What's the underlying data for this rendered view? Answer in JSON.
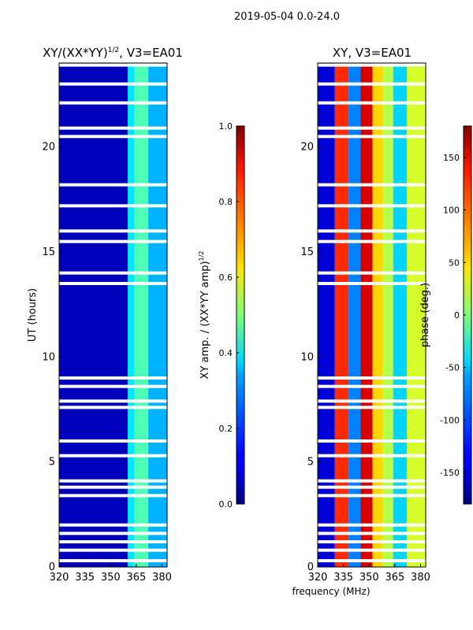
{
  "figure_title": "2019-05-04 0.0-24.0",
  "shared_xlabel": "frequency (MHz)",
  "chart_data": [
    {
      "type": "heatmap",
      "title_text": "XY/(XX*YY)",
      "title_exponent": "1/2",
      "title_suffix": ", V3=EA01",
      "xlabel": "",
      "ylabel": "UT (hours)",
      "xlim": [
        320,
        383
      ],
      "ylim": [
        0,
        24
      ],
      "xticks": [
        320,
        335,
        350,
        365,
        380
      ],
      "yticks": [
        0,
        5,
        10,
        15,
        20
      ],
      "colorbar": {
        "label": "XY amp. / (XX*YY amp)",
        "label_exponent": "1/2",
        "range": [
          0.0,
          1.0
        ],
        "ticks": [
          "0.0",
          "0.2",
          "0.4",
          "0.6",
          "0.8",
          "1.0"
        ],
        "colormap": "jet"
      },
      "bands": [
        {
          "fmin": 320,
          "fmax": 360,
          "value": 0.06
        },
        {
          "fmin": 360,
          "fmax": 364,
          "value": 0.35
        },
        {
          "fmin": 364,
          "fmax": 372,
          "value": 0.45
        },
        {
          "fmin": 372,
          "fmax": 383,
          "value": 0.3
        }
      ],
      "flagged_hours": [
        0.3,
        0.8,
        1.2,
        1.6,
        2.0,
        3.4,
        3.8,
        4.1,
        5.3,
        6.0,
        7.6,
        7.9,
        8.6,
        9.0,
        13.5,
        14.0,
        15.5,
        16.0,
        17.2,
        18.2,
        20.5,
        20.9,
        22.1,
        23.0,
        23.9
      ]
    },
    {
      "type": "heatmap",
      "title_text": "XY, V3=EA01",
      "xlabel": "frequency (MHz)",
      "ylabel": "",
      "xlim": [
        320,
        383
      ],
      "ylim": [
        0,
        24
      ],
      "xticks": [
        320,
        335,
        350,
        365,
        380
      ],
      "yticks": [
        0,
        5,
        10,
        15,
        20
      ],
      "colorbar": {
        "label": "phase (deg.)",
        "range": [
          -180,
          180
        ],
        "ticks": [
          "-150",
          "-100",
          "-50",
          "0",
          "50",
          "100",
          "150"
        ],
        "colormap": "jet"
      },
      "bands": [
        {
          "fmin": 320,
          "fmax": 330,
          "value": -150
        },
        {
          "fmin": 330,
          "fmax": 338,
          "value": 120
        },
        {
          "fmin": 338,
          "fmax": 345,
          "value": -90
        },
        {
          "fmin": 345,
          "fmax": 352,
          "value": 150
        },
        {
          "fmin": 352,
          "fmax": 358,
          "value": 60
        },
        {
          "fmin": 358,
          "fmax": 364,
          "value": 20
        },
        {
          "fmin": 364,
          "fmax": 372,
          "value": -60
        },
        {
          "fmin": 372,
          "fmax": 383,
          "value": 30
        }
      ],
      "flagged_hours": [
        0.3,
        0.8,
        1.2,
        1.6,
        2.0,
        3.4,
        3.8,
        4.1,
        5.3,
        6.0,
        7.6,
        7.9,
        8.6,
        9.0,
        13.5,
        14.0,
        15.5,
        16.0,
        17.2,
        18.2,
        20.5,
        20.9,
        22.1,
        23.0,
        23.9
      ]
    }
  ]
}
